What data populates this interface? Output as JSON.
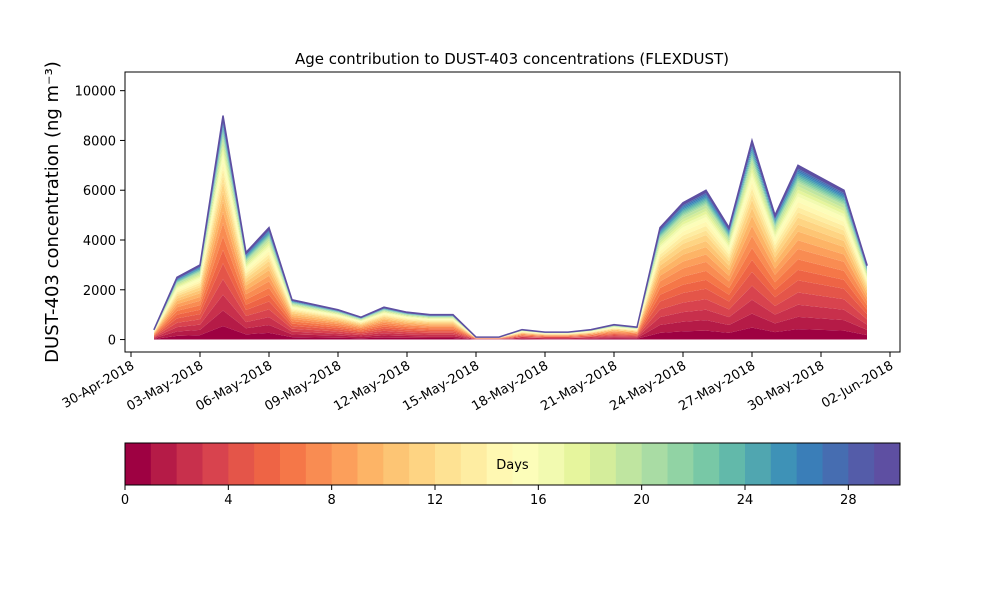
{
  "chart_data": {
    "type": "stacked-area",
    "title": "Age contribution to DUST-403 concentrations (FLEXDUST)",
    "y_label": "DUST-403 concentration (ng m⁻³)",
    "x": [
      "01-May-2018",
      "02-May-2018",
      "03-May-2018",
      "04-May-2018",
      "05-May-2018",
      "06-May-2018",
      "07-May-2018",
      "08-May-2018",
      "09-May-2018",
      "10-May-2018",
      "11-May-2018",
      "12-May-2018",
      "13-May-2018",
      "14-May-2018",
      "15-May-2018",
      "16-May-2018",
      "17-May-2018",
      "18-May-2018",
      "19-May-2018",
      "20-May-2018",
      "21-May-2018",
      "22-May-2018",
      "23-May-2018",
      "24-May-2018",
      "25-May-2018",
      "26-May-2018",
      "27-May-2018",
      "28-May-2018",
      "29-May-2018",
      "30-May-2018",
      "31-May-2018",
      "01-Jun-2018"
    ],
    "xlim": [
      "30-Apr-2018",
      "02-Jun-2018"
    ],
    "xticks": [
      "30-Apr-2018",
      "03-May-2018",
      "06-May-2018",
      "09-May-2018",
      "12-May-2018",
      "15-May-2018",
      "18-May-2018",
      "21-May-2018",
      "24-May-2018",
      "27-May-2018",
      "30-May-2018",
      "02-Jun-2018"
    ],
    "ylim": [
      -500,
      10750
    ],
    "yticks": [
      0,
      2000,
      4000,
      6000,
      8000,
      10000
    ],
    "series": [
      {
        "color": "#9e0142",
        "values": [
          24,
          150,
          180,
          540,
          210,
          270,
          96,
          84,
          72,
          54,
          78,
          66,
          60,
          60,
          6,
          6,
          24,
          18,
          18,
          24,
          36,
          30,
          270,
          330,
          360,
          270,
          480,
          300,
          420,
          390,
          360,
          180
        ]
      },
      {
        "color": "#b51b47",
        "values": [
          28,
          175,
          210,
          630,
          245,
          315,
          112,
          98,
          84,
          63,
          91,
          77,
          70,
          70,
          7,
          7,
          28,
          21,
          21,
          28,
          42,
          35,
          315,
          385,
          420,
          315,
          560,
          350,
          490,
          455,
          420,
          210
        ]
      },
      {
        "color": "#c8304c",
        "values": [
          28,
          175,
          210,
          630,
          245,
          315,
          112,
          98,
          84,
          63,
          91,
          77,
          70,
          70,
          7,
          7,
          28,
          21,
          21,
          28,
          42,
          35,
          315,
          385,
          420,
          315,
          560,
          350,
          490,
          455,
          420,
          210
        ]
      },
      {
        "color": "#d8434e",
        "values": [
          28,
          175,
          210,
          630,
          245,
          315,
          112,
          98,
          84,
          63,
          91,
          77,
          70,
          70,
          7,
          7,
          28,
          21,
          21,
          28,
          42,
          35,
          315,
          385,
          420,
          315,
          560,
          350,
          490,
          455,
          420,
          210
        ]
      },
      {
        "color": "#e45549",
        "values": [
          28,
          175,
          210,
          630,
          245,
          315,
          112,
          98,
          84,
          63,
          91,
          77,
          70,
          70,
          7,
          7,
          28,
          21,
          21,
          28,
          42,
          35,
          315,
          385,
          420,
          315,
          560,
          350,
          490,
          455,
          420,
          210
        ]
      },
      {
        "color": "#ee6445",
        "values": [
          24,
          150,
          180,
          540,
          210,
          270,
          96,
          84,
          72,
          54,
          78,
          66,
          60,
          60,
          6,
          6,
          24,
          18,
          18,
          24,
          36,
          30,
          270,
          330,
          360,
          270,
          480,
          300,
          420,
          390,
          360,
          180
        ]
      },
      {
        "color": "#f57748",
        "values": [
          24,
          150,
          180,
          540,
          210,
          270,
          96,
          84,
          72,
          54,
          78,
          66,
          60,
          60,
          6,
          6,
          24,
          18,
          18,
          24,
          36,
          30,
          270,
          330,
          360,
          270,
          480,
          300,
          420,
          390,
          360,
          180
        ]
      },
      {
        "color": "#f98c52",
        "values": [
          24,
          150,
          180,
          540,
          210,
          270,
          96,
          84,
          72,
          54,
          78,
          66,
          60,
          60,
          6,
          6,
          24,
          18,
          18,
          24,
          36,
          30,
          270,
          330,
          360,
          270,
          480,
          300,
          420,
          390,
          360,
          180
        ]
      },
      {
        "color": "#fc9f5b",
        "values": [
          20,
          125,
          150,
          450,
          175,
          225,
          80,
          70,
          60,
          45,
          65,
          55,
          50,
          50,
          5,
          5,
          20,
          15,
          15,
          20,
          30,
          25,
          225,
          275,
          300,
          225,
          400,
          250,
          350,
          325,
          300,
          150
        ]
      },
      {
        "color": "#fdb466",
        "values": [
          20,
          125,
          150,
          450,
          175,
          225,
          80,
          70,
          60,
          45,
          65,
          55,
          50,
          50,
          5,
          5,
          20,
          15,
          15,
          20,
          30,
          25,
          225,
          275,
          300,
          225,
          400,
          250,
          350,
          325,
          300,
          150
        ]
      },
      {
        "color": "#fdc574",
        "values": [
          16,
          100,
          120,
          360,
          140,
          180,
          64,
          56,
          48,
          36,
          52,
          44,
          40,
          40,
          4,
          4,
          16,
          12,
          12,
          16,
          24,
          20,
          180,
          220,
          240,
          180,
          320,
          200,
          280,
          260,
          240,
          120
        ]
      },
      {
        "color": "#fed483",
        "values": [
          16,
          100,
          120,
          360,
          140,
          180,
          64,
          56,
          48,
          36,
          52,
          44,
          40,
          40,
          4,
          4,
          16,
          12,
          12,
          16,
          24,
          20,
          180,
          220,
          240,
          180,
          320,
          200,
          280,
          260,
          240,
          120
        ]
      },
      {
        "color": "#fee293",
        "values": [
          12,
          75,
          90,
          270,
          105,
          135,
          48,
          42,
          36,
          27,
          39,
          33,
          30,
          30,
          3,
          3,
          12,
          9,
          9,
          12,
          18,
          15,
          135,
          165,
          180,
          135,
          240,
          150,
          210,
          195,
          180,
          90
        ]
      },
      {
        "color": "#feeda2",
        "values": [
          12,
          75,
          90,
          270,
          105,
          135,
          48,
          42,
          36,
          27,
          39,
          33,
          30,
          30,
          3,
          3,
          12,
          9,
          9,
          12,
          18,
          15,
          135,
          165,
          180,
          135,
          240,
          150,
          210,
          195,
          180,
          90
        ]
      },
      {
        "color": "#fff8b2",
        "values": [
          12,
          75,
          90,
          270,
          105,
          135,
          48,
          42,
          36,
          27,
          39,
          33,
          30,
          30,
          3,
          3,
          12,
          9,
          9,
          12,
          18,
          15,
          135,
          165,
          180,
          135,
          240,
          150,
          210,
          195,
          180,
          90
        ]
      },
      {
        "color": "#fcfdb9",
        "values": [
          12,
          75,
          90,
          270,
          105,
          135,
          48,
          42,
          36,
          27,
          39,
          33,
          30,
          30,
          3,
          3,
          12,
          9,
          9,
          12,
          18,
          15,
          135,
          165,
          180,
          135,
          240,
          150,
          210,
          195,
          180,
          90
        ]
      },
      {
        "color": "#f2fab0",
        "values": [
          8,
          50,
          60,
          180,
          70,
          90,
          32,
          28,
          24,
          18,
          26,
          22,
          20,
          20,
          2,
          2,
          8,
          6,
          6,
          8,
          12,
          10,
          90,
          110,
          120,
          90,
          160,
          100,
          140,
          130,
          120,
          60
        ]
      },
      {
        "color": "#e6f59d",
        "values": [
          8,
          50,
          60,
          180,
          70,
          90,
          32,
          28,
          24,
          18,
          26,
          22,
          20,
          20,
          2,
          2,
          8,
          6,
          6,
          8,
          12,
          10,
          90,
          110,
          120,
          90,
          160,
          100,
          140,
          130,
          120,
          60
        ]
      },
      {
        "color": "#d4ed9b",
        "values": [
          8,
          50,
          60,
          180,
          70,
          90,
          32,
          28,
          24,
          18,
          26,
          22,
          20,
          20,
          2,
          2,
          8,
          6,
          6,
          8,
          12,
          10,
          90,
          110,
          120,
          90,
          160,
          100,
          140,
          130,
          120,
          60
        ]
      },
      {
        "color": "#bfe5a0",
        "values": [
          8,
          50,
          60,
          180,
          70,
          90,
          32,
          28,
          24,
          18,
          26,
          22,
          20,
          20,
          2,
          2,
          8,
          6,
          6,
          8,
          12,
          10,
          90,
          110,
          120,
          90,
          160,
          100,
          140,
          130,
          120,
          60
        ]
      },
      {
        "color": "#a9dca4",
        "values": [
          4,
          25,
          30,
          90,
          35,
          45,
          16,
          14,
          12,
          9,
          13,
          11,
          10,
          10,
          1,
          1,
          4,
          3,
          3,
          4,
          6,
          5,
          45,
          55,
          60,
          45,
          80,
          50,
          70,
          65,
          60,
          30
        ]
      },
      {
        "color": "#91d3a4",
        "values": [
          4,
          25,
          30,
          90,
          35,
          45,
          16,
          14,
          12,
          9,
          13,
          11,
          10,
          10,
          1,
          1,
          4,
          3,
          3,
          4,
          6,
          5,
          45,
          55,
          60,
          45,
          80,
          50,
          70,
          65,
          60,
          30
        ]
      },
      {
        "color": "#78c8a6",
        "values": [
          4,
          25,
          30,
          90,
          35,
          45,
          16,
          14,
          12,
          9,
          13,
          11,
          10,
          10,
          1,
          1,
          4,
          3,
          3,
          4,
          6,
          5,
          45,
          55,
          60,
          45,
          80,
          50,
          70,
          65,
          60,
          30
        ]
      },
      {
        "color": "#62b9aa",
        "values": [
          4,
          25,
          30,
          90,
          35,
          45,
          16,
          14,
          12,
          9,
          13,
          11,
          10,
          10,
          1,
          1,
          4,
          3,
          3,
          4,
          6,
          5,
          45,
          55,
          60,
          45,
          80,
          50,
          70,
          65,
          60,
          30
        ]
      },
      {
        "color": "#50a6b0",
        "values": [
          4,
          25,
          30,
          90,
          35,
          45,
          16,
          14,
          12,
          9,
          13,
          11,
          10,
          10,
          1,
          1,
          4,
          3,
          3,
          4,
          6,
          5,
          45,
          55,
          60,
          45,
          80,
          50,
          70,
          65,
          60,
          30
        ]
      },
      {
        "color": "#3e92b7",
        "values": [
          4,
          25,
          30,
          90,
          35,
          45,
          16,
          14,
          12,
          9,
          13,
          11,
          10,
          10,
          1,
          1,
          4,
          3,
          3,
          4,
          6,
          5,
          45,
          55,
          60,
          45,
          80,
          50,
          70,
          65,
          60,
          30
        ]
      },
      {
        "color": "#3a7eb8",
        "values": [
          4,
          25,
          30,
          90,
          35,
          45,
          16,
          14,
          12,
          9,
          13,
          11,
          10,
          10,
          1,
          1,
          4,
          3,
          3,
          4,
          6,
          5,
          45,
          55,
          60,
          45,
          80,
          50,
          70,
          65,
          60,
          30
        ]
      },
      {
        "color": "#466db1",
        "values": [
          4,
          25,
          30,
          90,
          35,
          45,
          16,
          14,
          12,
          9,
          13,
          11,
          10,
          10,
          1,
          1,
          4,
          3,
          3,
          4,
          6,
          5,
          45,
          55,
          60,
          45,
          80,
          50,
          70,
          65,
          60,
          30
        ]
      },
      {
        "color": "#545ca9",
        "values": [
          4,
          25,
          30,
          90,
          35,
          45,
          16,
          14,
          12,
          9,
          13,
          11,
          10,
          10,
          1,
          1,
          4,
          3,
          3,
          4,
          6,
          5,
          45,
          55,
          60,
          45,
          80,
          50,
          70,
          65,
          60,
          30
        ]
      },
      {
        "color": "#5e4fa2",
        "values": [
          4,
          25,
          30,
          90,
          35,
          45,
          16,
          14,
          12,
          9,
          13,
          11,
          10,
          10,
          1,
          1,
          4,
          3,
          3,
          4,
          6,
          5,
          45,
          55,
          60,
          45,
          80,
          50,
          70,
          65,
          60,
          30
        ]
      }
    ],
    "colorbar": {
      "label": "Days",
      "lim": [
        0,
        30
      ],
      "ticks": [
        0,
        4,
        8,
        12,
        16,
        20,
        24,
        28
      ]
    }
  }
}
